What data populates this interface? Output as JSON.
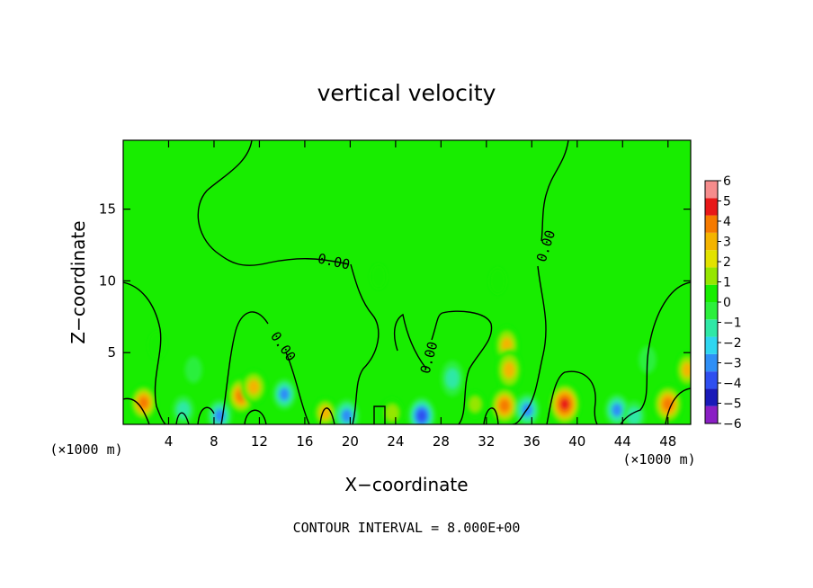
{
  "chart_data": {
    "type": "heatmap",
    "title": "vertical velocity",
    "xlabel": "X−coordinate",
    "ylabel": "Z−coordinate",
    "x_unit_left": "(×1000 m)",
    "x_unit_right": "(×1000 m)",
    "xlim": [
      0,
      50
    ],
    "ylim": [
      0,
      19.8
    ],
    "x_ticks": [
      4,
      8,
      12,
      16,
      20,
      24,
      28,
      32,
      36,
      40,
      44,
      48
    ],
    "y_ticks": [
      5,
      10,
      15
    ],
    "colorbar": {
      "min": -6,
      "max": 6,
      "labels": [
        "6",
        "5",
        "4",
        "3",
        "2",
        "1",
        "0",
        "−1",
        "−2",
        "−3",
        "−4",
        "−5",
        "−6"
      ],
      "colors": [
        "#8a1fc4",
        "#1a1ab8",
        "#2f4ff0",
        "#2f8ff6",
        "#2fd6f0",
        "#2fe8a6",
        "#2cef3c",
        "#18ed00",
        "#96e600",
        "#e2e200",
        "#f4b400",
        "#f57a00",
        "#e81818",
        "#f58c8c"
      ]
    },
    "background_value": 0,
    "field_features": [
      {
        "x": 1.8,
        "z": 1.5,
        "value": 3.2
      },
      {
        "x": 10.4,
        "z": 2.0,
        "value": 3.5
      },
      {
        "x": 11.5,
        "z": 2.6,
        "value": 3.0
      },
      {
        "x": 14.2,
        "z": 2.1,
        "value": -2.2
      },
      {
        "x": 5.3,
        "z": 1.0,
        "value": -1.8
      },
      {
        "x": 8.5,
        "z": 0.6,
        "value": -2.5
      },
      {
        "x": 3.0,
        "z": 5.5,
        "value": 0.8
      },
      {
        "x": 17.8,
        "z": 0.8,
        "value": 2.2
      },
      {
        "x": 19.7,
        "z": 0.6,
        "value": -2.6
      },
      {
        "x": 23.7,
        "z": 0.8,
        "value": 2.0
      },
      {
        "x": 26.3,
        "z": 0.6,
        "value": -3.2
      },
      {
        "x": 29.0,
        "z": 3.2,
        "value": -2.0
      },
      {
        "x": 31.0,
        "z": 1.4,
        "value": 1.5
      },
      {
        "x": 33.8,
        "z": 5.5,
        "value": 2.6
      },
      {
        "x": 34.0,
        "z": 3.8,
        "value": 3.0
      },
      {
        "x": 33.6,
        "z": 1.3,
        "value": 3.6
      },
      {
        "x": 35.6,
        "z": 1.0,
        "value": -2.6
      },
      {
        "x": 38.9,
        "z": 1.4,
        "value": 4.4
      },
      {
        "x": 43.5,
        "z": 1.0,
        "value": -2.4
      },
      {
        "x": 48.0,
        "z": 1.4,
        "value": 3.8
      },
      {
        "x": 45.0,
        "z": 0.6,
        "value": -2.0
      },
      {
        "x": 46.2,
        "z": 4.5,
        "value": -0.8
      },
      {
        "x": 49.7,
        "z": 3.8,
        "value": 2.2
      },
      {
        "x": 6.2,
        "z": 3.8,
        "value": -0.7
      },
      {
        "x": 33.0,
        "z": 10.0,
        "value": 0.6
      },
      {
        "x": 22.5,
        "z": 10.3,
        "value": 0.4
      }
    ],
    "contour_label": "0.00",
    "contour_interval": "CONTOUR INTERVAL = 8.000E+00"
  }
}
